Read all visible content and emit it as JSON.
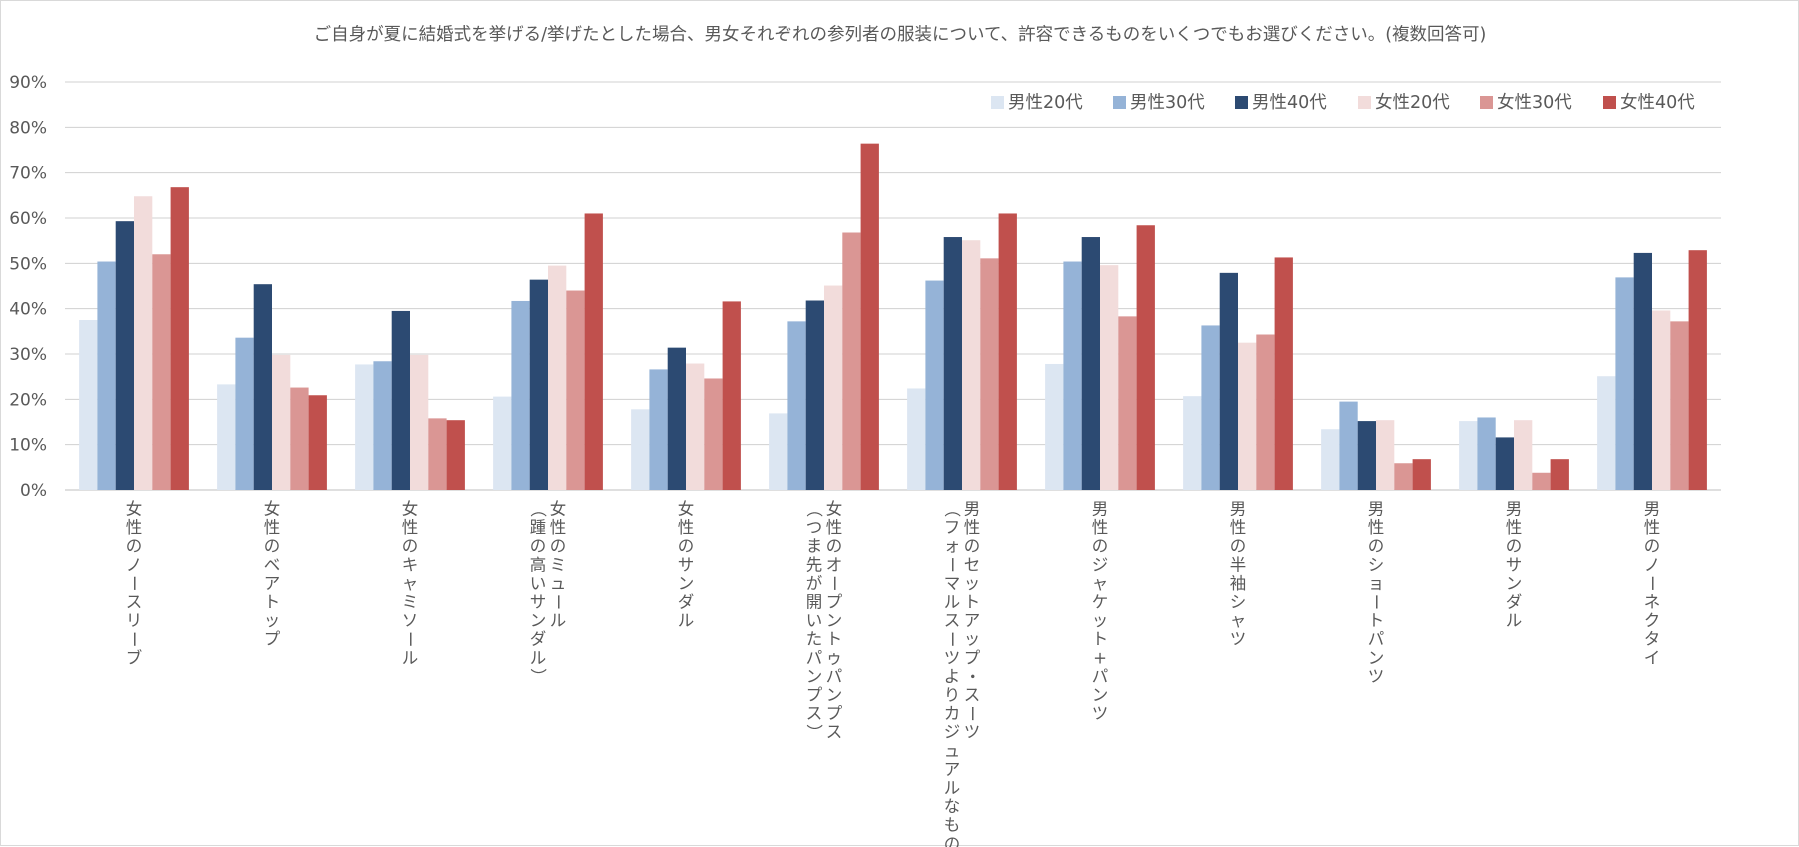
{
  "chart_data": {
    "type": "bar",
    "title": "ご自身が夏に結婚式を挙げる/挙げたとした場合、男女それぞれの参列者の服装について、許容できるものをいくつでもお選びください。(複数回答可)",
    "ylim": [
      0,
      90
    ],
    "yticks": [
      "0%",
      "10%",
      "20%",
      "30%",
      "40%",
      "50%",
      "60%",
      "70%",
      "80%",
      "90%"
    ],
    "grid": true,
    "legend_position": "top-right",
    "categories": [
      [
        "女性のノースリーブ"
      ],
      [
        "女性のベアトップ"
      ],
      [
        "女性のキャミソール"
      ],
      [
        "女性のミュール",
        "（踵の高いサンダル）"
      ],
      [
        "女性のサンダル"
      ],
      [
        "女性のオープントゥパンプス",
        "（つま先が開いたパンプス）"
      ],
      [
        "男性のセットアップ・スーツ",
        "（フォーマルスーツよりカジュアルなもの）"
      ],
      [
        "男性のジャケット+パンツ"
      ],
      [
        "男性の半袖シャツ"
      ],
      [
        "男性のショートパンツ"
      ],
      [
        "男性のサンダル"
      ],
      [
        "男性のノーネクタイ"
      ]
    ],
    "series": [
      {
        "name": "男性20代",
        "color": "#dce6f2",
        "values": [
          37.5,
          23.3,
          27.7,
          20.6,
          17.8,
          16.9,
          22.4,
          27.8,
          20.7,
          13.4,
          15.2,
          25.1
        ]
      },
      {
        "name": "男性30代",
        "color": "#95b3d7",
        "values": [
          50.4,
          33.6,
          28.4,
          41.7,
          26.6,
          37.2,
          46.2,
          50.4,
          36.3,
          19.5,
          16.0,
          46.9
        ]
      },
      {
        "name": "男性40代",
        "color": "#2c4a72",
        "values": [
          59.3,
          45.4,
          39.5,
          46.4,
          31.4,
          41.8,
          55.8,
          55.8,
          47.9,
          15.2,
          11.6,
          52.3
        ]
      },
      {
        "name": "女性20代",
        "color": "#f2dcdb",
        "values": [
          64.8,
          29.8,
          29.8,
          49.5,
          27.9,
          45.1,
          55.1,
          49.6,
          32.5,
          15.4,
          15.4,
          39.6
        ]
      },
      {
        "name": "女性30代",
        "color": "#da9694",
        "values": [
          52.0,
          22.6,
          15.8,
          44.0,
          24.6,
          56.8,
          51.1,
          38.3,
          34.3,
          5.9,
          3.8,
          37.2
        ]
      },
      {
        "name": "女性40代",
        "color": "#c0504d",
        "values": [
          66.8,
          20.9,
          15.4,
          61.0,
          41.6,
          76.4,
          61.0,
          58.4,
          51.3,
          6.8,
          6.8,
          52.9
        ]
      }
    ]
  }
}
